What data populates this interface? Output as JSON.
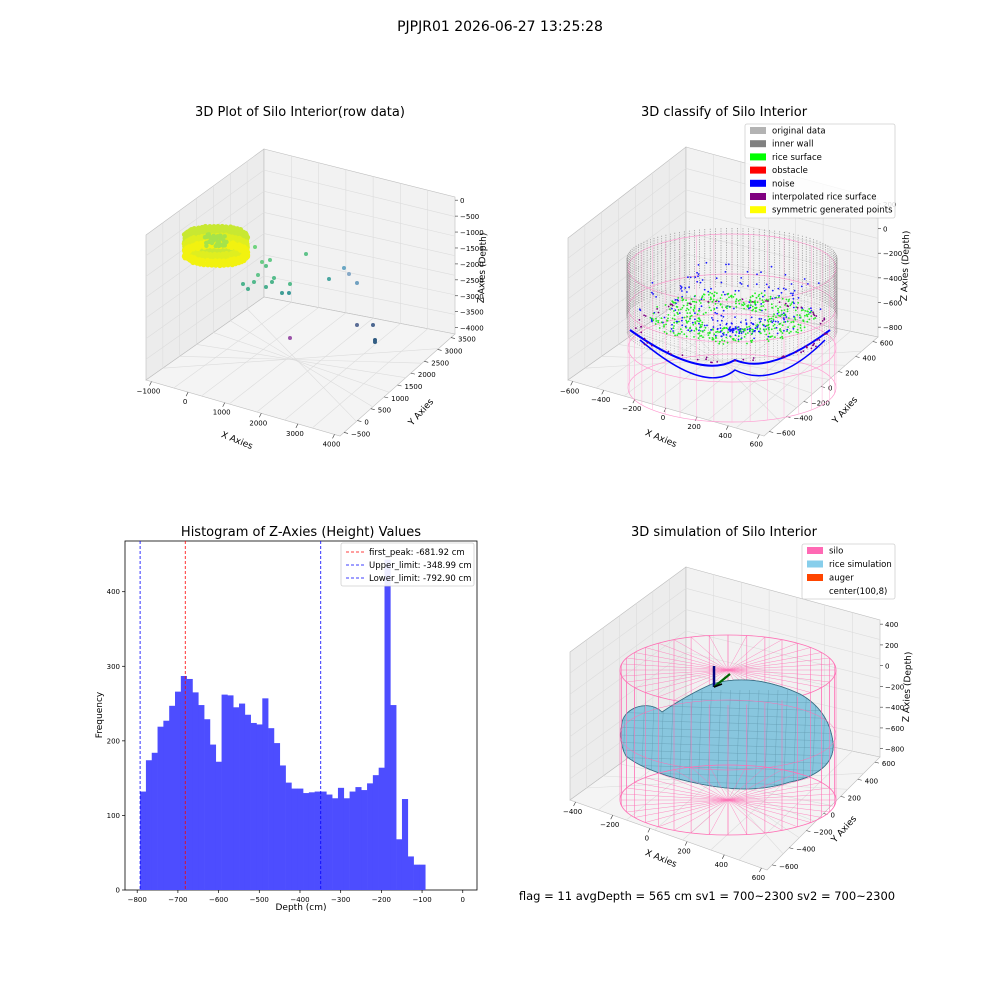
{
  "suptitle": "PJPJR01 2026-06-27 13:25:28",
  "panels": {
    "raw": {
      "title": "3D Plot of Silo Interior(row data)",
      "xlabel": "X Axies",
      "ylabel": "Y Axies",
      "zlabel": "Z Axies (Depth)",
      "xticks": [
        "−1000",
        "0",
        "1000",
        "2000",
        "3000",
        "4000"
      ],
      "yticks": [
        "−500",
        "0",
        "500",
        "1000",
        "1500",
        "2000",
        "2500",
        "3000",
        "3500"
      ],
      "zticks": [
        "0",
        "−500",
        "−1000",
        "−1500",
        "−2000",
        "−2500",
        "−3000",
        "−3500",
        "−4000"
      ]
    },
    "classify": {
      "title": "3D classify of Silo Interior",
      "xlabel": "X Axies",
      "ylabel": "Y Axies",
      "zlabel": "Z Axies (Depth)",
      "xticks": [
        "−600",
        "−400",
        "−200",
        "0",
        "200",
        "400",
        "600"
      ],
      "yticks": [
        "−600",
        "−400",
        "−200",
        "0",
        "200",
        "400",
        "600"
      ],
      "zticks": [
        "200",
        "0",
        "−200",
        "−400",
        "−600",
        "−800"
      ],
      "legend": [
        {
          "label": "original data",
          "color": "#b3b3b3"
        },
        {
          "label": "inner wall",
          "color": "#808080"
        },
        {
          "label": "rice surface",
          "color": "#00ff00"
        },
        {
          "label": "obstacle",
          "color": "#ff0000"
        },
        {
          "label": "noise",
          "color": "#0000ff"
        },
        {
          "label": "interpolated rice surface",
          "color": "#800080"
        },
        {
          "label": "symmetric generated points",
          "color": "#ffff00"
        }
      ]
    },
    "simulation": {
      "title": "3D simulation of Silo Interior",
      "xlabel": "X Axies",
      "ylabel": "Y Axies",
      "zlabel": "Z Axies (Depth)",
      "xticks": [
        "−400",
        "−200",
        "0",
        "200",
        "400",
        "600"
      ],
      "yticks": [
        "−600",
        "−400",
        "−200",
        "0",
        "200",
        "400",
        "600"
      ],
      "zticks": [
        "400",
        "200",
        "0",
        "−200",
        "−400",
        "−600",
        "−800"
      ],
      "legend": [
        {
          "label": "silo",
          "color": "#ff69b4"
        },
        {
          "label": "rice simulation",
          "color": "#87ceeb"
        },
        {
          "label": "auger",
          "color": "#ff4500"
        },
        {
          "label": "center(100,8)",
          "color": "#ffffff"
        }
      ],
      "status_text": "flag = 11   avgDepth = 565 cm   sv1 = 700~2300   sv2 = 700~2300"
    }
  },
  "chart_data": [
    {
      "type": "histogram",
      "title": "Histogram of Z-Axies (Height) Values",
      "xlabel": "Depth (cm)",
      "ylabel": "Frequency",
      "xlim": [
        -830,
        35
      ],
      "ylim": [
        0,
        468
      ],
      "xticks": [
        -800,
        -700,
        -600,
        -500,
        -400,
        -300,
        -200,
        -100,
        0
      ],
      "yticks": [
        0,
        100,
        200,
        300,
        400
      ],
      "bar_color": "#4d4dff",
      "bin_start": -792.9,
      "bin_width": 14.3,
      "values": [
        132,
        174,
        184,
        219,
        227,
        247,
        266,
        287,
        283,
        265,
        248,
        229,
        195,
        172,
        262,
        261,
        245,
        250,
        235,
        224,
        222,
        257,
        217,
        197,
        167,
        144,
        136,
        136,
        130,
        131,
        132,
        132,
        128,
        123,
        137,
        123,
        132,
        138,
        134,
        143,
        154,
        164,
        443,
        248,
        68,
        122,
        45,
        34,
        34
      ],
      "reference_lines": [
        {
          "name": "first_peak: -681.92 cm",
          "value": -681.92,
          "color": "#ff0000"
        },
        {
          "name": "Upper_limit: -348.99 cm",
          "value": -348.99,
          "color": "#0000ff"
        },
        {
          "name": "Lower_limit: -792.90 cm",
          "value": -792.9,
          "color": "#0000ff"
        }
      ],
      "legend_position": "top-right"
    }
  ]
}
